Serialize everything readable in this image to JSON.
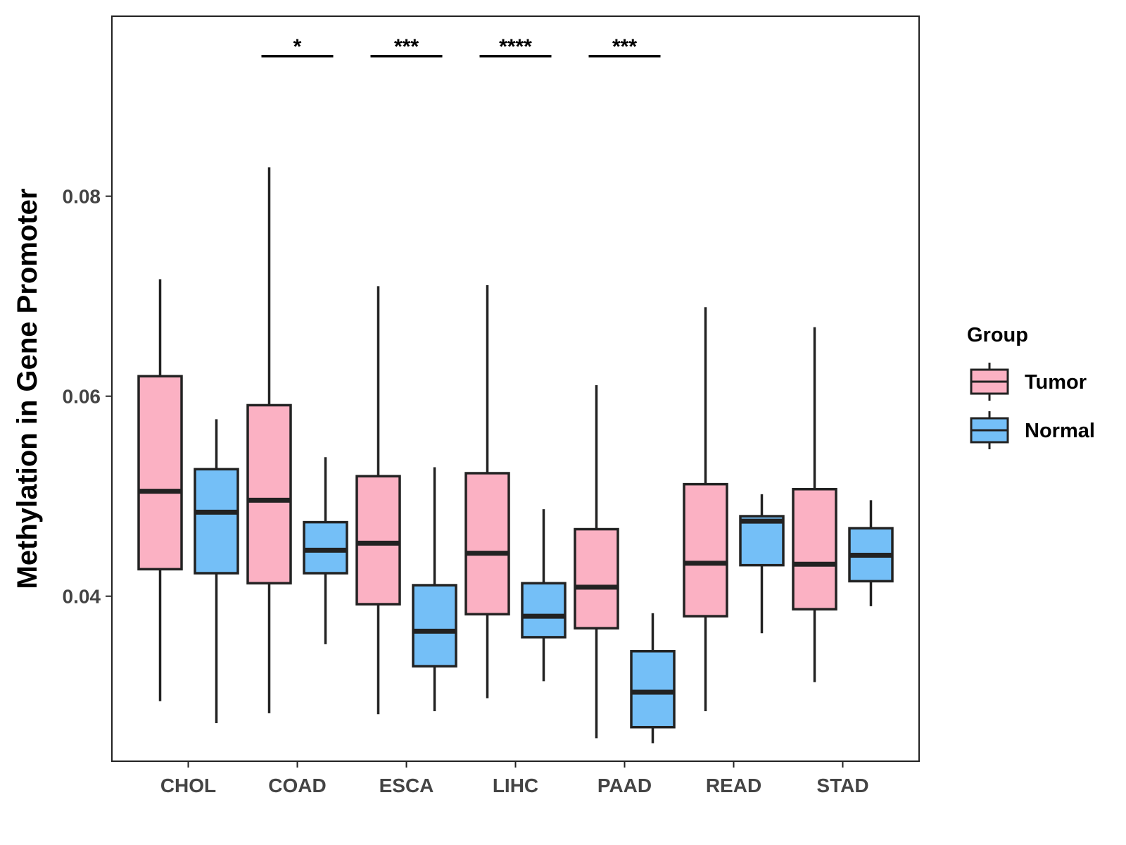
{
  "chart_data": {
    "type": "boxplot",
    "title": "",
    "xlabel": "",
    "ylabel": "Methylation in Gene Promoter",
    "ylim": [
      0.0235,
      0.098
    ],
    "yticks": [
      0.04,
      0.06,
      0.08
    ],
    "ytick_labels": [
      "0.04",
      "0.06",
      "0.08"
    ],
    "grid": false,
    "legend_position": "right",
    "categories": [
      "CHOL",
      "COAD",
      "ESCA",
      "LIHC",
      "PAAD",
      "READ",
      "STAD"
    ],
    "series": [
      {
        "name": "Tumor",
        "color": "#FBB1C3",
        "boxes": [
          {
            "min": 0.0295,
            "q1": 0.0427,
            "median": 0.0505,
            "q3": 0.062,
            "max": 0.0717
          },
          {
            "min": 0.0283,
            "q1": 0.0413,
            "median": 0.0496,
            "q3": 0.0591,
            "max": 0.0829
          },
          {
            "min": 0.0282,
            "q1": 0.0392,
            "median": 0.0453,
            "q3": 0.052,
            "max": 0.071
          },
          {
            "min": 0.0298,
            "q1": 0.0382,
            "median": 0.0443,
            "q3": 0.0523,
            "max": 0.0711
          },
          {
            "min": 0.0258,
            "q1": 0.0368,
            "median": 0.0409,
            "q3": 0.0467,
            "max": 0.0611
          },
          {
            "min": 0.0285,
            "q1": 0.038,
            "median": 0.0433,
            "q3": 0.0512,
            "max": 0.0689
          },
          {
            "min": 0.0314,
            "q1": 0.0387,
            "median": 0.0432,
            "q3": 0.0507,
            "max": 0.0669
          }
        ]
      },
      {
        "name": "Normal",
        "color": "#74BFF7",
        "boxes": [
          {
            "min": 0.0273,
            "q1": 0.0423,
            "median": 0.0484,
            "q3": 0.0527,
            "max": 0.0577
          },
          {
            "min": 0.0352,
            "q1": 0.0423,
            "median": 0.0446,
            "q3": 0.0474,
            "max": 0.0539
          },
          {
            "min": 0.0285,
            "q1": 0.033,
            "median": 0.0365,
            "q3": 0.0411,
            "max": 0.0529
          },
          {
            "min": 0.0315,
            "q1": 0.0359,
            "median": 0.038,
            "q3": 0.0413,
            "max": 0.0487
          },
          {
            "min": 0.0253,
            "q1": 0.0269,
            "median": 0.0304,
            "q3": 0.0345,
            "max": 0.0383
          },
          {
            "min": 0.0363,
            "q1": 0.0431,
            "median": 0.0475,
            "q3": 0.048,
            "max": 0.0502
          },
          {
            "min": 0.039,
            "q1": 0.0415,
            "median": 0.0441,
            "q3": 0.0468,
            "max": 0.0496
          }
        ]
      }
    ],
    "significance": [
      {
        "category": "COAD",
        "label": "*",
        "y": 0.094
      },
      {
        "category": "ESCA",
        "label": "***",
        "y": 0.094
      },
      {
        "category": "LIHC",
        "label": "****",
        "y": 0.094
      },
      {
        "category": "PAAD",
        "label": "***",
        "y": 0.094
      }
    ]
  },
  "legend": {
    "title": "Group",
    "items": [
      {
        "label": "Tumor",
        "color": "#FBB1C3"
      },
      {
        "label": "Normal",
        "color": "#74BFF7"
      }
    ]
  },
  "colors": {
    "stroke": "#222222",
    "axis": "#222222"
  }
}
